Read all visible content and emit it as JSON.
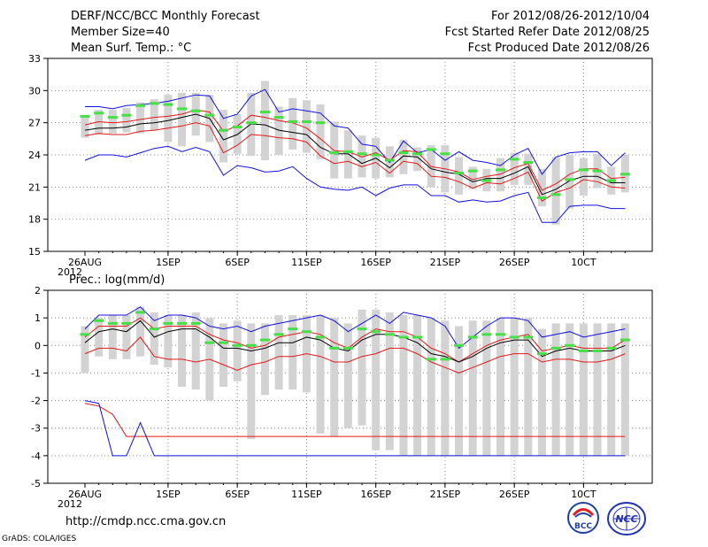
{
  "header": {
    "title": "DERF/NCC/BCC Monthly Forecast",
    "member_size": "Member Size=40",
    "variable": "Mean Surf. Temp.: °C",
    "period": "For 2012/08/26-2012/10/04",
    "fcst_started": "Fcst Started Refer Date 2012/08/25",
    "fcst_produced": "Fcst Produced Date 2012/08/26"
  },
  "footer": {
    "url": "http://cmdp.ncc.cma.gov.cn",
    "grads": "GrADS: COLA/IGES",
    "logo_left_text": "BCC",
    "logo_right_text": "NCC"
  },
  "colors": {
    "box": "#d3d3d3",
    "max_min": "#1010e0",
    "quartile": "#e01818",
    "median": "#000000",
    "dash": "#44e044"
  },
  "chart_data": [
    {
      "type": "line",
      "title": "Mean Surf. Temp.: °C",
      "ylim": [
        15,
        33
      ],
      "yticks": [
        15,
        18,
        21,
        24,
        27,
        30,
        33
      ],
      "xticklabels": [
        "26AUG",
        "1SEP",
        "6SEP",
        "11SEP",
        "16SEP",
        "21SEP",
        "26SEP",
        "1OCT"
      ],
      "xtick_day_index": [
        0,
        6,
        11,
        16,
        21,
        26,
        31,
        36
      ],
      "xtick_display": [
        "26AUG",
        "1SEP",
        "6SEP",
        "11SEP",
        "16SEP",
        "21SEP",
        "26SEP",
        "10CT"
      ],
      "xlabel_extra": "2012",
      "days": 40,
      "series": [
        {
          "name": "max",
          "values": [
            28.5,
            28.5,
            28.3,
            28.6,
            28.7,
            28.8,
            29.0,
            29.3,
            29.6,
            29.5,
            27.4,
            27.8,
            29.5,
            30.1,
            28.0,
            28.3,
            28.1,
            27.9,
            26.7,
            26.5,
            25.0,
            24.8,
            23.3,
            25.3,
            24.2,
            24.5,
            23.5,
            24.3,
            23.5,
            23.3,
            23.0,
            24.0,
            24.6,
            22.2,
            23.8,
            24.2,
            24.3,
            24.3,
            23.0,
            24.2
          ]
        },
        {
          "name": "upper_quartile",
          "values": [
            26.8,
            27.1,
            27.0,
            27.1,
            27.3,
            27.5,
            27.6,
            27.8,
            28.2,
            28.0,
            26.2,
            26.7,
            27.7,
            27.5,
            27.2,
            27.0,
            26.5,
            25.5,
            24.4,
            24.3,
            23.8,
            24.2,
            23.5,
            24.4,
            24.3,
            22.9,
            22.7,
            22.4,
            21.7,
            22.0,
            22.2,
            22.8,
            23.2,
            20.7,
            21.3,
            22.2,
            22.7,
            22.7,
            21.8,
            21.9
          ]
        },
        {
          "name": "median",
          "values": [
            26.3,
            26.5,
            26.5,
            26.6,
            26.9,
            27.0,
            27.2,
            27.5,
            27.8,
            27.4,
            25.4,
            25.9,
            26.9,
            26.8,
            26.3,
            26.1,
            25.9,
            24.7,
            24.1,
            24.1,
            23.2,
            23.7,
            22.8,
            23.9,
            23.8,
            22.7,
            22.4,
            22.2,
            21.5,
            21.8,
            21.8,
            22.3,
            22.9,
            20.3,
            20.8,
            21.6,
            22.0,
            22.0,
            21.4,
            21.4
          ]
        },
        {
          "name": "lower_quartile",
          "values": [
            25.8,
            26.0,
            25.9,
            25.9,
            26.2,
            26.3,
            26.5,
            26.7,
            27.0,
            26.7,
            24.2,
            24.9,
            25.9,
            25.8,
            25.6,
            25.5,
            25.2,
            23.9,
            23.2,
            23.4,
            22.9,
            23.3,
            22.3,
            23.4,
            23.2,
            22.0,
            21.9,
            21.5,
            20.9,
            21.4,
            21.3,
            21.8,
            22.4,
            19.7,
            20.5,
            20.9,
            21.7,
            21.5,
            21.0,
            20.9
          ]
        },
        {
          "name": "min",
          "values": [
            23.5,
            24.0,
            24.0,
            23.8,
            24.2,
            24.6,
            24.8,
            24.3,
            24.7,
            24.3,
            22.1,
            23.0,
            22.8,
            22.4,
            22.5,
            22.9,
            21.8,
            21.0,
            20.8,
            20.7,
            21.0,
            20.2,
            20.9,
            21.2,
            21.2,
            20.2,
            20.2,
            19.6,
            19.8,
            19.6,
            19.7,
            20.2,
            20.5,
            17.7,
            17.7,
            19.2,
            19.3,
            19.3,
            19.0,
            19.0
          ]
        },
        {
          "name": "ensemble_mean_dash",
          "values": [
            27.6,
            27.9,
            27.5,
            27.7,
            28.6,
            28.8,
            28.7,
            28.3,
            28.1,
            27.7,
            26.3,
            26.6,
            27.0,
            28.0,
            27.5,
            27.1,
            27.1,
            27.0,
            24.2,
            24.3,
            24.1,
            24.0,
            23.5,
            24.2,
            24.1,
            24.5,
            24.1,
            22.3,
            22.5,
            21.6,
            22.6,
            23.6,
            23.3,
            20.0,
            20.3,
            21.7,
            22.6,
            22.5,
            21.6,
            22.2
          ]
        }
      ],
      "box_low": [
        25.6,
        25.9,
        26.0,
        26.1,
        26.0,
        26.3,
        25.2,
        24.8,
        25.8,
        25.2,
        23.3,
        24.1,
        23.9,
        23.5,
        24.0,
        24.5,
        24.2,
        23.6,
        21.8,
        21.8,
        21.9,
        21.8,
        21.9,
        22.2,
        22.5,
        21.0,
        20.5,
        20.3,
        20.8,
        20.6,
        20.6,
        21.2,
        21.2,
        19.2,
        17.5,
        19.0,
        20.2,
        20.9,
        20.3,
        20.5
      ],
      "box_high": [
        27.6,
        28.2,
        28.2,
        28.4,
        28.9,
        29.2,
        29.6,
        29.8,
        29.8,
        29.6,
        28.2,
        27.8,
        29.8,
        30.9,
        28.5,
        29.3,
        29.1,
        28.7,
        27.1,
        26.3,
        25.8,
        25.6,
        24.8,
        25.4,
        24.7,
        24.9,
        24.9,
        23.8,
        22.9,
        22.7,
        23.7,
        24.2,
        24.1,
        22.7,
        23.8,
        24.0,
        23.7,
        24.1,
        22.9,
        24.0
      ]
    },
    {
      "type": "line",
      "title": "Prec.: log(mm/d)",
      "ylim": [
        -5,
        2
      ],
      "yticks": [
        -5,
        -4,
        -3,
        -2,
        -1,
        0,
        1,
        2
      ],
      "xticklabels": [
        "26AUG",
        "1SEP",
        "6SEP",
        "11SEP",
        "16SEP",
        "21SEP",
        "26SEP",
        "1OCT"
      ],
      "xtick_day_index": [
        0,
        6,
        11,
        16,
        21,
        26,
        31,
        36
      ],
      "xtick_display": [
        "26AUG",
        "1SEP",
        "6SEP",
        "11SEP",
        "16SEP",
        "21SEP",
        "26SEP",
        "10CT"
      ],
      "xlabel_extra": "2012",
      "days": 40,
      "series": [
        {
          "name": "max",
          "values": [
            0.6,
            1.1,
            1.1,
            1.1,
            1.4,
            0.9,
            1.1,
            1.1,
            1.0,
            0.7,
            0.6,
            0.7,
            0.5,
            0.7,
            0.8,
            0.9,
            1.0,
            1.1,
            0.9,
            0.5,
            0.8,
            1.1,
            0.8,
            1.2,
            1.1,
            1.0,
            0.7,
            -0.1,
            0.3,
            0.7,
            1.0,
            1.0,
            0.9,
            0.3,
            0.4,
            0.5,
            0.3,
            0.4,
            0.5,
            0.6
          ]
        },
        {
          "name": "upper_quartile",
          "values": [
            0.3,
            0.7,
            0.7,
            0.7,
            1.0,
            0.6,
            0.7,
            0.7,
            0.7,
            0.4,
            0.2,
            0.1,
            -0.1,
            0.0,
            0.3,
            0.4,
            0.5,
            0.4,
            0.1,
            -0.1,
            0.3,
            0.6,
            0.5,
            0.5,
            0.3,
            -0.1,
            -0.3,
            -0.6,
            -0.3,
            0.0,
            0.2,
            0.3,
            0.4,
            -0.2,
            -0.1,
            0.0,
            -0.1,
            -0.1,
            -0.1,
            0.2
          ]
        },
        {
          "name": "median",
          "values": [
            0.1,
            0.5,
            0.6,
            0.5,
            0.9,
            0.3,
            0.5,
            0.6,
            0.6,
            0.3,
            -0.1,
            -0.1,
            -0.2,
            -0.1,
            0.1,
            0.1,
            0.3,
            0.2,
            -0.1,
            -0.2,
            0.2,
            0.4,
            0.4,
            0.3,
            0.1,
            -0.3,
            -0.4,
            -0.6,
            -0.4,
            -0.1,
            0.1,
            0.2,
            0.2,
            -0.4,
            -0.2,
            -0.1,
            -0.2,
            -0.2,
            -0.2,
            0.0
          ]
        },
        {
          "name": "lower_quartile",
          "values": [
            -0.3,
            -0.1,
            -0.1,
            -0.2,
            0.3,
            -0.4,
            -0.5,
            -0.5,
            -0.6,
            -0.5,
            -0.7,
            -0.9,
            -0.7,
            -0.6,
            -0.4,
            -0.4,
            -0.3,
            -0.4,
            -0.6,
            -0.6,
            -0.4,
            -0.3,
            -0.1,
            -0.1,
            -0.3,
            -0.6,
            -0.8,
            -1.0,
            -0.8,
            -0.6,
            -0.4,
            -0.3,
            -0.3,
            -0.6,
            -0.5,
            -0.5,
            -0.6,
            -0.6,
            -0.5,
            -0.3
          ]
        },
        {
          "name": "lower_line_red",
          "values": [
            -2.1,
            -2.2,
            -2.5,
            -3.3,
            -3.3,
            -3.3,
            -3.3,
            -3.3,
            -3.3,
            -3.3,
            -3.3,
            -3.3,
            -3.3,
            -3.3,
            -3.3,
            -3.3,
            -3.3,
            -3.3,
            -3.3,
            -3.3,
            -3.3,
            -3.3,
            -3.3,
            -3.3,
            -3.3,
            -3.3,
            -3.3,
            -3.3,
            -3.3,
            -3.3,
            -3.3,
            -3.3,
            -3.3,
            -3.3,
            -3.3,
            -3.3,
            -3.3,
            -3.3,
            -3.3,
            -3.3
          ]
        },
        {
          "name": "min",
          "values": [
            -2.0,
            -2.1,
            -4.0,
            -4.0,
            -2.8,
            -4.0,
            -4.0,
            -4.0,
            -4.0,
            -4.0,
            -4.0,
            -4.0,
            -4.0,
            -4.0,
            -4.0,
            -4.0,
            -4.0,
            -4.0,
            -4.0,
            -4.0,
            -4.0,
            -4.0,
            -4.0,
            -4.0,
            -4.0,
            -4.0,
            -4.0,
            -4.0,
            -4.0,
            -4.0,
            -4.0,
            -4.0,
            -4.0,
            -4.0,
            -4.0,
            -4.0,
            -4.0,
            -4.0,
            -4.0,
            -4.0
          ]
        },
        {
          "name": "ensemble_mean_dash",
          "values": [
            0.4,
            0.9,
            0.8,
            0.8,
            1.2,
            0.6,
            0.8,
            0.8,
            0.8,
            0.1,
            0.1,
            0.0,
            0.0,
            0.2,
            0.4,
            0.6,
            0.5,
            0.3,
            -0.1,
            -0.1,
            0.6,
            0.5,
            0.4,
            0.3,
            0.3,
            -0.5,
            -0.5,
            0.0,
            0.3,
            0.4,
            0.4,
            0.3,
            0.3,
            -0.3,
            -0.1,
            0.0,
            -0.2,
            -0.2,
            -0.1,
            0.2
          ]
        }
      ],
      "box_low": [
        -1.0,
        -0.4,
        -0.5,
        -0.5,
        -0.4,
        -0.7,
        -0.8,
        -1.5,
        -1.6,
        -2.0,
        -1.5,
        -1.3,
        -3.4,
        -1.8,
        -1.6,
        -1.6,
        -1.7,
        -3.2,
        -3.3,
        -3.0,
        -2.9,
        -3.8,
        -3.8,
        -4.0,
        -4.0,
        -4.0,
        -4.0,
        -4.0,
        -4.0,
        -4.0,
        -4.0,
        -4.0,
        -4.0,
        -4.0,
        -4.0,
        -4.0,
        -4.0,
        -4.0,
        -4.0,
        -4.0
      ],
      "box_high": [
        0.7,
        1.0,
        1.1,
        1.1,
        1.4,
        1.2,
        1.1,
        1.1,
        1.2,
        1.0,
        0.8,
        0.9,
        0.8,
        0.8,
        1.1,
        1.1,
        1.1,
        1.1,
        1.0,
        0.8,
        1.3,
        1.3,
        1.2,
        1.1,
        1.1,
        1.0,
        0.9,
        0.7,
        0.9,
        0.9,
        1.0,
        1.0,
        1.0,
        0.6,
        0.8,
        0.8,
        0.8,
        0.8,
        0.8,
        0.8
      ]
    }
  ]
}
